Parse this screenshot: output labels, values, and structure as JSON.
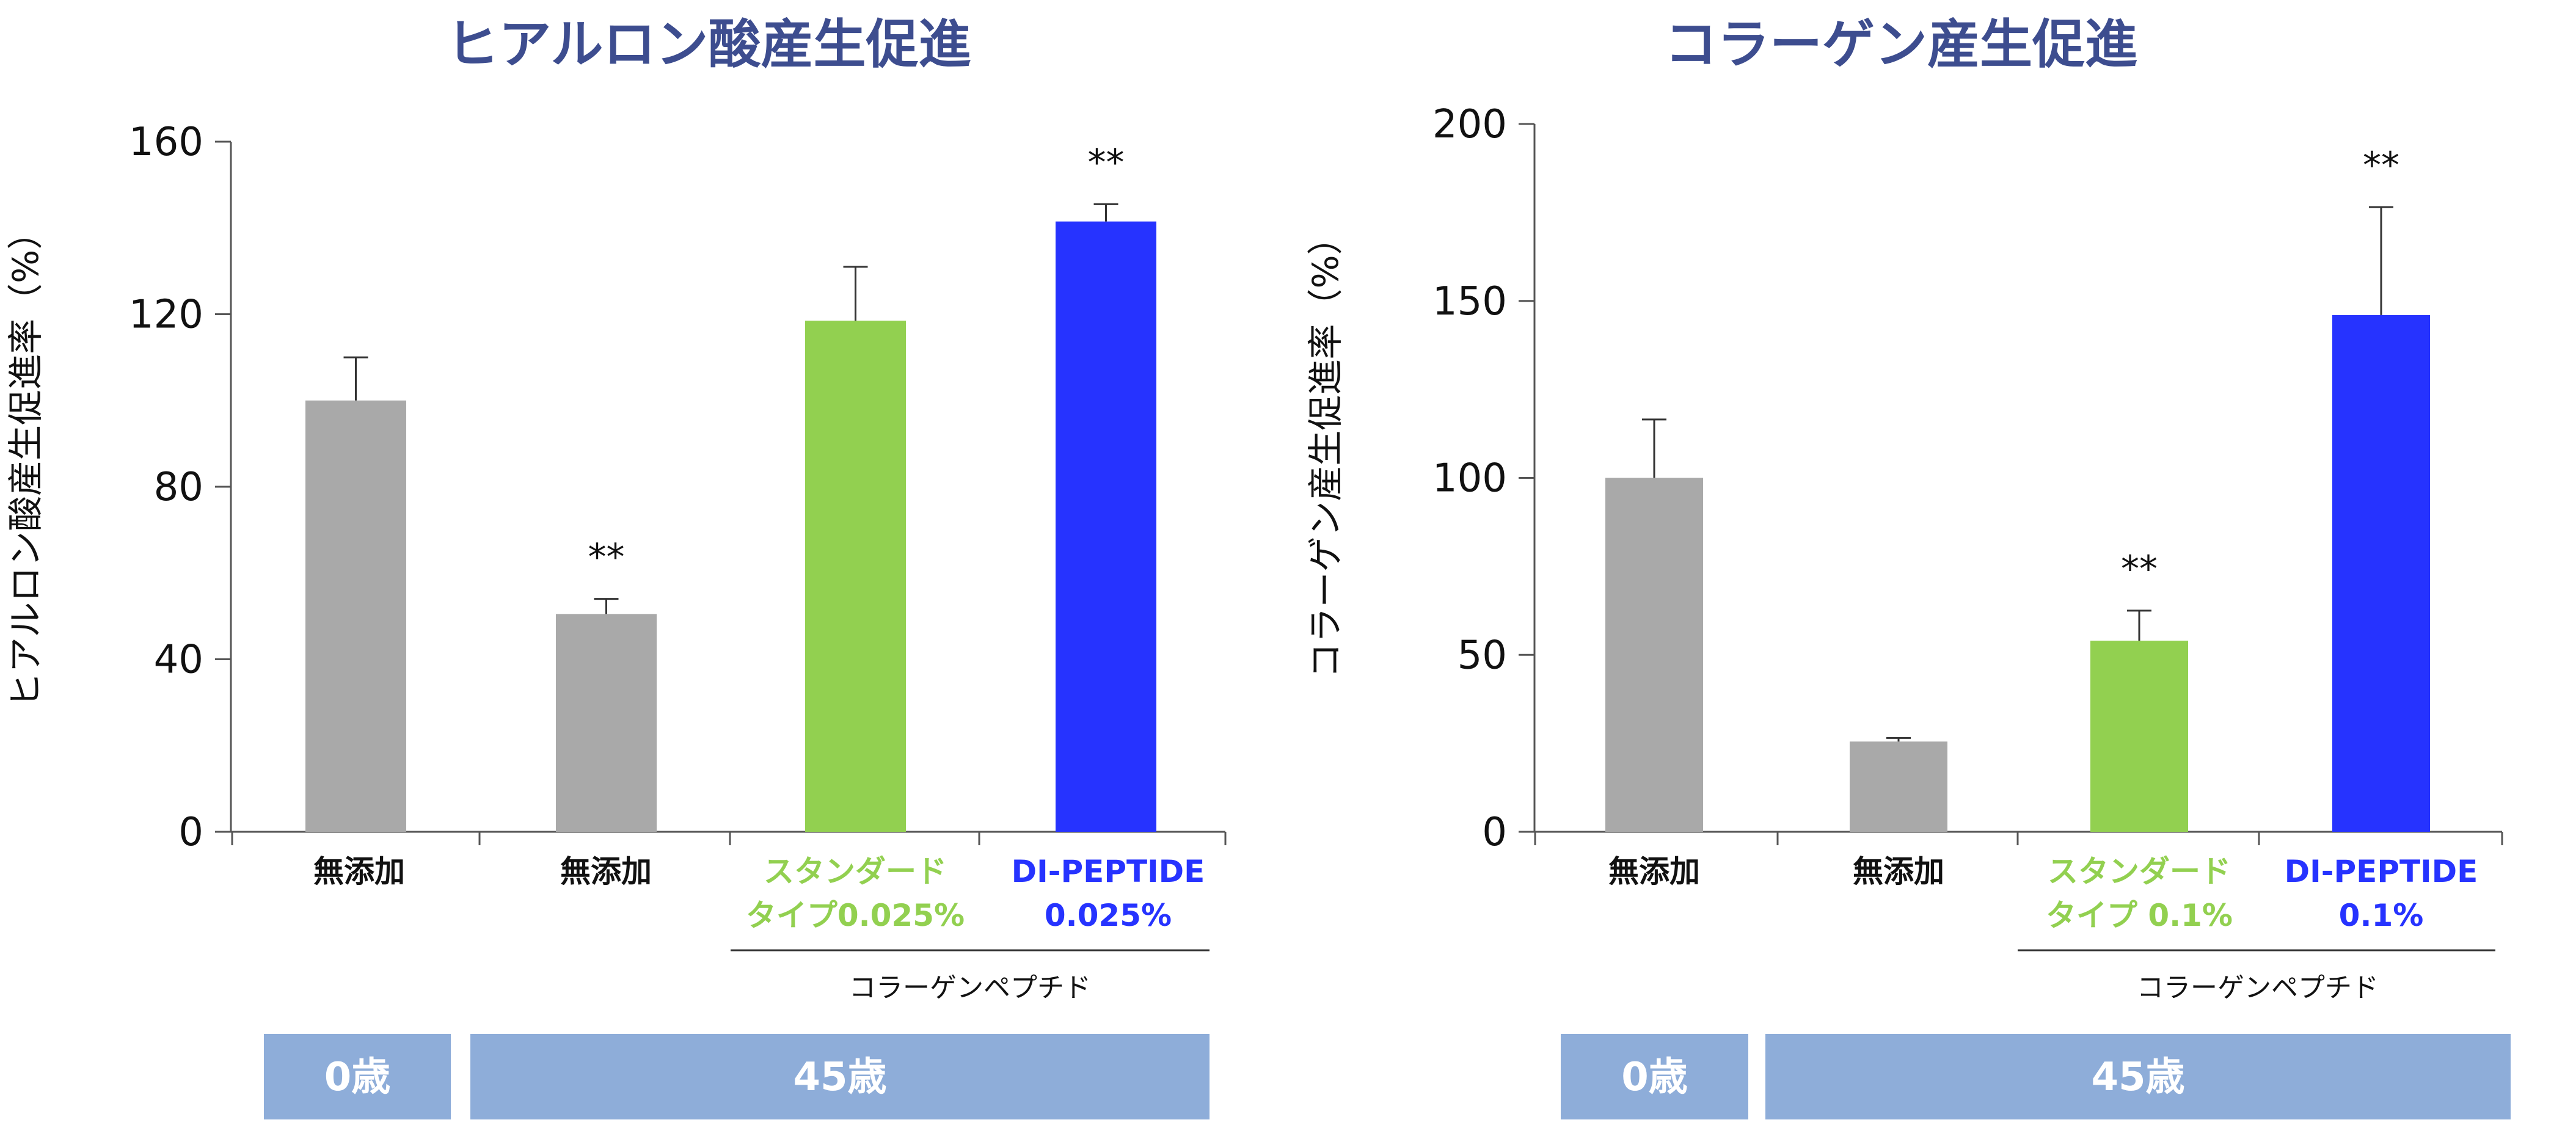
{
  "colors": {
    "gray": "#a9a9a9",
    "green": "#92d050",
    "blue": "#2633ff",
    "title": "#3d4d8f",
    "age_band": "#8eadd9",
    "axis": "#555555"
  },
  "chart_data": [
    {
      "type": "bar",
      "title": "ヒアルロン酸産生促進",
      "ylabel": "ヒアルロン酸産生促進率（%）",
      "ylim": [
        0,
        160
      ],
      "yticks": [
        "0",
        "40",
        "80",
        "120",
        "160"
      ],
      "grid": false,
      "categories": [
        {
          "lines": [
            "無添加"
          ],
          "color": "gray"
        },
        {
          "lines": [
            "無添加"
          ],
          "color": "gray"
        },
        {
          "lines": [
            "スタンダード",
            "タイプ0.025%"
          ],
          "color": "green"
        },
        {
          "lines": [
            "DI-PEPTIDE",
            "0.025%"
          ],
          "color": "blue"
        }
      ],
      "values": [
        100,
        50.5,
        118.5,
        141.5
      ],
      "errors": [
        10,
        3.5,
        12.5,
        4
      ],
      "significance": [
        "",
        "**",
        "",
        "**"
      ],
      "group_label": "コラーゲンペプチド",
      "age_labels": [
        "0歳",
        "45歳"
      ]
    },
    {
      "type": "bar",
      "title": "コラーゲン産生促進",
      "ylabel": "コラーゲン産生促進率（%）",
      "ylim": [
        0,
        200
      ],
      "yticks": [
        "0",
        "50",
        "100",
        "150",
        "200"
      ],
      "grid": false,
      "categories": [
        {
          "lines": [
            "無添加"
          ],
          "color": "gray"
        },
        {
          "lines": [
            "無添加"
          ],
          "color": "gray"
        },
        {
          "lines": [
            "スタンダード",
            "タイプ 0.1%"
          ],
          "color": "green"
        },
        {
          "lines": [
            "DI-PEPTIDE",
            "0.1%"
          ],
          "color": "blue"
        }
      ],
      "values": [
        100,
        25.5,
        54,
        146
      ],
      "errors": [
        16.5,
        1,
        8.5,
        30.5
      ],
      "significance": [
        "",
        "",
        "**",
        "**"
      ],
      "group_label": "コラーゲンペプチド",
      "age_labels": [
        "0歳",
        "45歳"
      ]
    }
  ]
}
